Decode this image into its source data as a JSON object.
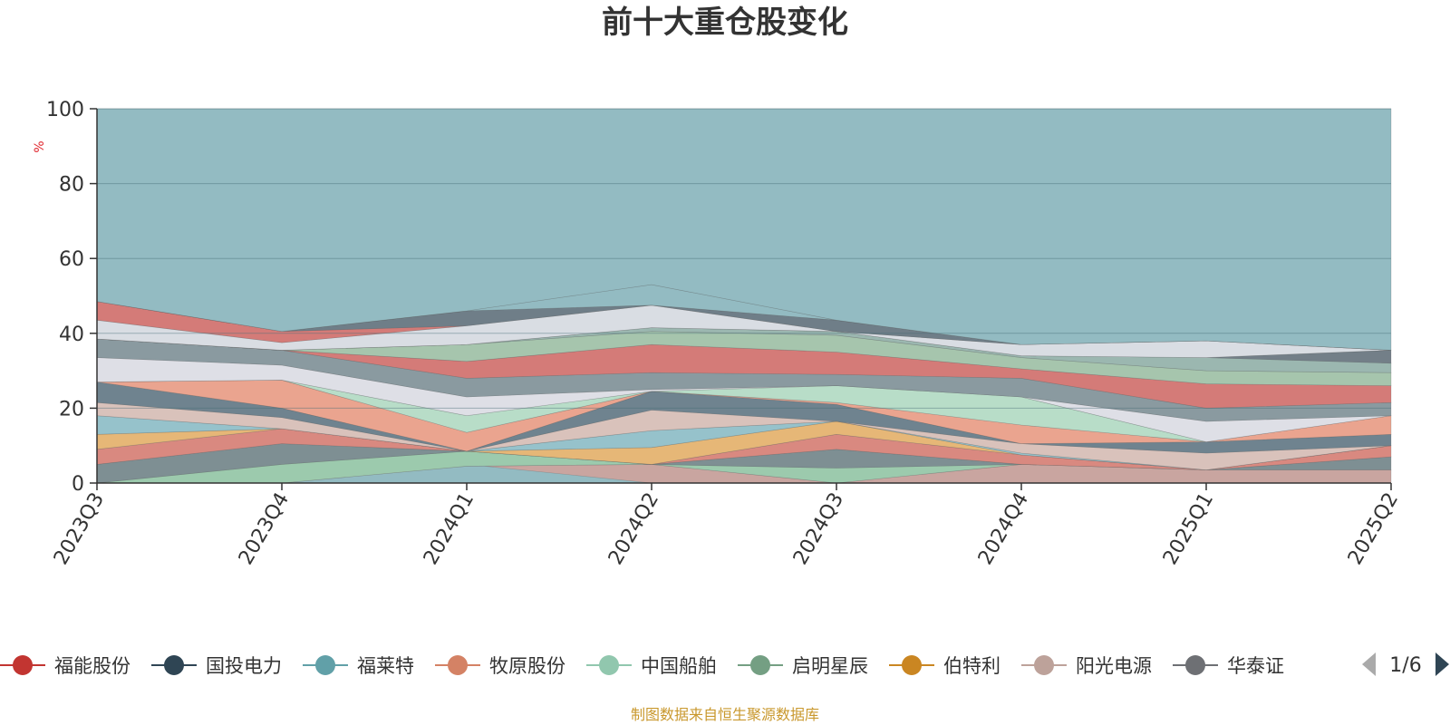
{
  "chart_data": {
    "type": "area",
    "title": "前十大重仓股变化",
    "ylabel": "%",
    "xlabel": "",
    "x": [
      "2023Q3",
      "2023Q4",
      "2024Q1",
      "2024Q2",
      "2024Q3",
      "2024Q4",
      "2025Q1",
      "2025Q2"
    ],
    "ylim": [
      0,
      100
    ],
    "yticks": [
      0,
      20,
      40,
      60,
      80,
      100
    ],
    "grid": true,
    "boundaries": [
      {
        "color": "#93bbc2",
        "values": [
          0,
          3,
          5,
          0,
          0,
          0,
          0,
          0
        ]
      },
      {
        "color": "#c9a5a0",
        "values": [
          0,
          0,
          4.5,
          5,
          0,
          5,
          3.5,
          3.5
        ]
      },
      {
        "color": "#9ccaad",
        "values": [
          0,
          5,
          8.5,
          5,
          4,
          5,
          3.5,
          3.5
        ]
      },
      {
        "color": "#7e8f93",
        "values": [
          5,
          10.5,
          8.5,
          5,
          9,
          5,
          3.5,
          7
        ]
      },
      {
        "color": "#d98980",
        "values": [
          9,
          14.5,
          8.5,
          5,
          13,
          7.5,
          3.5,
          10
        ]
      },
      {
        "color": "#e6b777",
        "values": [
          13,
          14.5,
          8.5,
          9.5,
          16.5,
          7.5,
          3.5,
          10
        ]
      },
      {
        "color": "#96c2cb",
        "values": [
          18,
          14.5,
          8.5,
          14,
          16.5,
          8,
          3.5,
          10
        ]
      },
      {
        "color": "#d9c2bb",
        "values": [
          21.5,
          17.5,
          8.5,
          19.5,
          16.5,
          10.5,
          8,
          10
        ]
      },
      {
        "color": "#6f838f",
        "values": [
          27,
          20,
          8.5,
          24.5,
          21,
          10.5,
          11,
          13
        ]
      },
      {
        "color": "#eaa48f",
        "values": [
          27,
          27.5,
          13.5,
          24.5,
          21.5,
          15.5,
          11,
          18
        ]
      },
      {
        "color": "#b8ddc8",
        "values": [
          27,
          27.5,
          18,
          24.5,
          26,
          23,
          11,
          18
        ]
      },
      {
        "color": "#dedfe6",
        "values": [
          33.5,
          31.5,
          23,
          25,
          26,
          23,
          16.5,
          18
        ]
      },
      {
        "color": "#8a9aa0",
        "values": [
          38.5,
          35.5,
          28,
          29.5,
          29,
          28,
          20,
          21.5
        ]
      },
      {
        "color": "#d47b78",
        "values": [
          38.5,
          35.5,
          32.5,
          37,
          35,
          30.5,
          26.5,
          26
        ]
      },
      {
        "color": "#a6c5ad",
        "values": [
          38.5,
          35.5,
          37,
          40.5,
          39.5,
          33.5,
          30,
          29.5
        ]
      },
      {
        "color": "#9bb7b0",
        "values": [
          38.5,
          35.5,
          37,
          41.5,
          40.5,
          34,
          33.5,
          32
        ]
      },
      {
        "color": "#737f88",
        "values": [
          38.5,
          35.5,
          37,
          41.5,
          40.5,
          34,
          33.5,
          35.5
        ]
      },
      {
        "color": "#d9dde3",
        "values": [
          43.5,
          37.5,
          42,
          47.5,
          40.5,
          37,
          38,
          35.5
        ]
      },
      {
        "color": "#d47b78",
        "values": [
          48.5,
          40.5,
          42,
          47.5,
          40.5,
          37,
          38,
          35.5
        ]
      },
      {
        "color": "#6f7e88",
        "values": [
          48.5,
          40.5,
          46,
          47.5,
          43.5,
          37,
          38,
          35.5
        ]
      },
      {
        "color": "#93bbc2",
        "values": [
          48.5,
          40.5,
          46,
          53,
          43.5,
          37,
          38,
          35.5
        ]
      },
      {
        "color": "#93bbc2",
        "values": [
          100,
          100,
          100,
          100,
          100,
          100,
          100,
          100
        ]
      }
    ],
    "legend": [
      {
        "name": "福能股份",
        "color": "#c23531"
      },
      {
        "name": "国投电力",
        "color": "#2f4554"
      },
      {
        "name": "福莱特",
        "color": "#61a0a8"
      },
      {
        "name": "牧原股份",
        "color": "#d48265"
      },
      {
        "name": "中国船舶",
        "color": "#91c7ae"
      },
      {
        "name": "启明星辰",
        "color": "#749f83"
      },
      {
        "name": "伯特利",
        "color": "#ca8622"
      },
      {
        "name": "阳光电源",
        "color": "#bda29a"
      },
      {
        "name": "华泰证",
        "color": "#6e7074"
      }
    ],
    "legend_placement": "bottom",
    "pager": "1/6",
    "source": "制图数据来自恒生聚源数据库"
  }
}
